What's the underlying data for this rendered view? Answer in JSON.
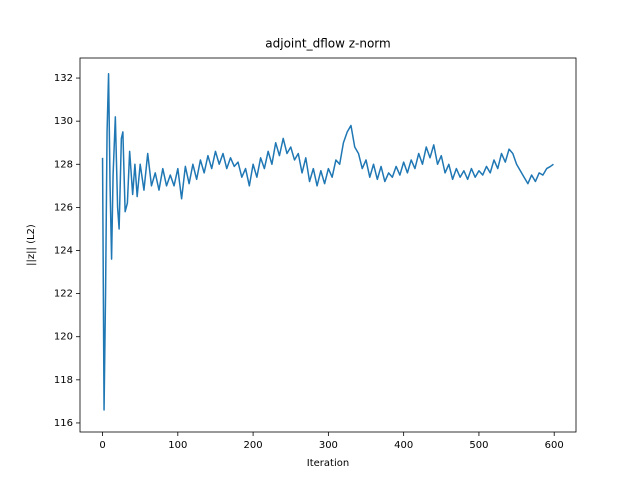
{
  "chart_data": {
    "type": "line",
    "title": "adjoint_dflow z-norm",
    "xlabel": "Iteration",
    "ylabel": "||z|| (L2)",
    "color": "#1f77b4",
    "x": [
      0,
      2,
      4,
      6,
      8,
      10,
      12,
      14,
      17,
      20,
      22,
      25,
      27,
      30,
      33,
      36,
      40,
      43,
      46,
      50,
      55,
      60,
      65,
      70,
      75,
      80,
      85,
      90,
      95,
      100,
      105,
      110,
      115,
      120,
      125,
      130,
      135,
      140,
      145,
      150,
      155,
      160,
      165,
      170,
      175,
      180,
      185,
      190,
      195,
      200,
      205,
      210,
      215,
      220,
      225,
      230,
      235,
      240,
      245,
      250,
      255,
      260,
      265,
      270,
      275,
      280,
      285,
      290,
      295,
      300,
      305,
      310,
      315,
      320,
      325,
      330,
      335,
      340,
      345,
      350,
      355,
      360,
      365,
      370,
      375,
      380,
      385,
      390,
      395,
      400,
      405,
      410,
      415,
      420,
      425,
      430,
      435,
      440,
      445,
      450,
      455,
      460,
      465,
      470,
      475,
      480,
      485,
      490,
      495,
      500,
      505,
      510,
      515,
      520,
      525,
      530,
      535,
      540,
      545,
      550,
      555,
      560,
      565,
      570,
      575,
      580,
      585,
      590,
      595,
      599
    ],
    "values": [
      128.3,
      116.6,
      122,
      129.5,
      132.2,
      127,
      123.6,
      127.5,
      130.2,
      126,
      125,
      129.2,
      129.5,
      125.8,
      126.2,
      128.6,
      126.6,
      128.0,
      126.5,
      128.0,
      126.8,
      128.5,
      127.0,
      127.6,
      126.8,
      127.8,
      127.0,
      127.5,
      127.0,
      127.8,
      126.4,
      127.9,
      127.1,
      128.0,
      127.3,
      128.2,
      127.6,
      128.4,
      127.8,
      128.6,
      128.0,
      128.5,
      127.8,
      128.3,
      127.9,
      128.1,
      127.4,
      127.8,
      127.0,
      128.0,
      127.4,
      128.3,
      127.8,
      128.6,
      128.0,
      129.0,
      128.4,
      129.2,
      128.5,
      128.8,
      128.2,
      128.5,
      127.6,
      128.3,
      127.2,
      127.8,
      127.0,
      127.7,
      127.1,
      127.8,
      127.4,
      128.2,
      128.0,
      129.0,
      129.5,
      129.8,
      128.8,
      128.5,
      127.8,
      128.2,
      127.4,
      128.0,
      127.3,
      127.9,
      127.2,
      127.6,
      127.4,
      127.9,
      127.5,
      128.1,
      127.6,
      128.2,
      127.8,
      128.5,
      128.0,
      128.8,
      128.3,
      128.9,
      128.0,
      128.4,
      127.6,
      128.0,
      127.3,
      127.8,
      127.4,
      127.7,
      127.3,
      127.8,
      127.4,
      127.7,
      127.5,
      127.9,
      127.6,
      128.2,
      127.8,
      128.5,
      128.1,
      128.7,
      128.5,
      128.0,
      127.7,
      127.4,
      127.1,
      127.5,
      127.2,
      127.6,
      127.5,
      127.8,
      127.9,
      128.0
    ],
    "xlim": [
      -29.95,
      628.95
    ],
    "ylim": [
      115.58,
      132.93
    ],
    "xticks": [
      0,
      100,
      200,
      300,
      400,
      500,
      600
    ],
    "yticks": [
      116,
      118,
      120,
      122,
      124,
      126,
      128,
      130,
      132
    ]
  }
}
